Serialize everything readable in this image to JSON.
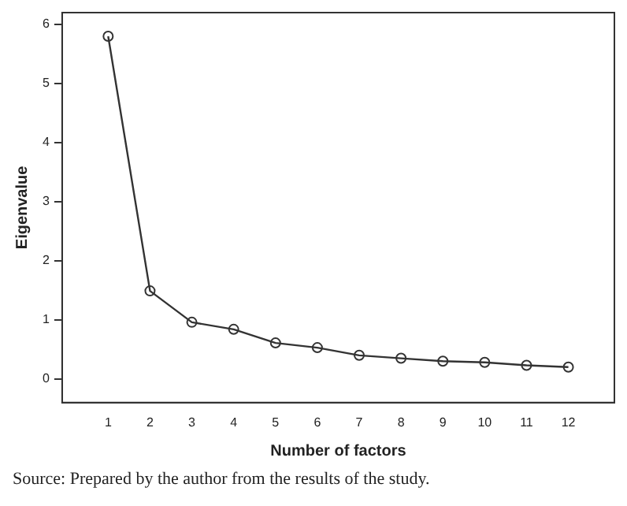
{
  "chart_data": {
    "type": "line",
    "xlabel": "Number of factors",
    "ylabel": "Eigenvalue",
    "x": [
      1,
      2,
      3,
      4,
      5,
      6,
      7,
      8,
      9,
      10,
      11,
      12
    ],
    "xlim": [
      -0.1,
      13.1
    ],
    "xticks": [
      1,
      2,
      3,
      4,
      5,
      6,
      7,
      8,
      9,
      10,
      11,
      12
    ],
    "series": [
      {
        "color": "#333333",
        "values": [
          5.8,
          1.49,
          0.96,
          0.84,
          0.61,
          0.53,
          0.4,
          0.35,
          0.3,
          0.28,
          0.23,
          0.2
        ]
      }
    ],
    "ylim": [
      -0.4,
      6.2
    ],
    "yticks": [
      0,
      1,
      2,
      3,
      4,
      5,
      6
    ],
    "grid": false,
    "legend": false,
    "marker": "circle",
    "line_style": "solid",
    "annotations": [
      "Source: Prepared by the author from the results of the study."
    ]
  }
}
